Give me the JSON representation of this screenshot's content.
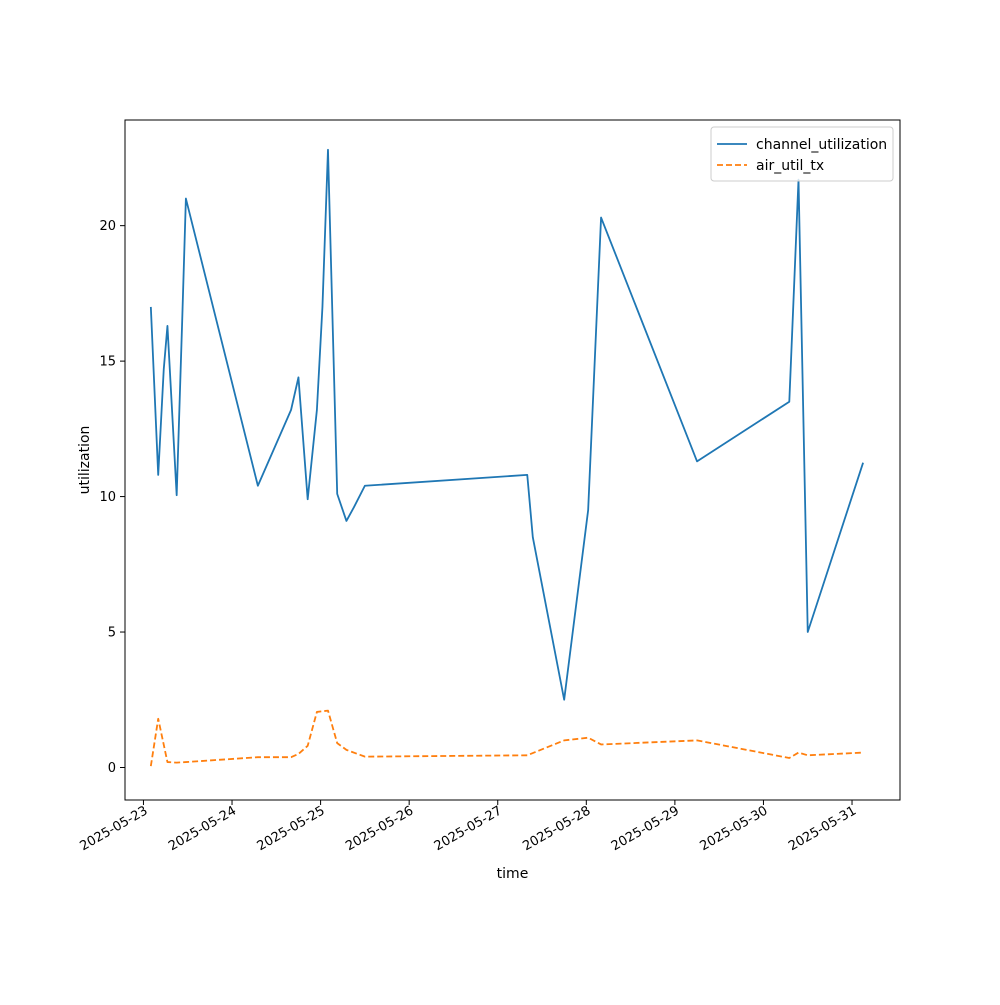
{
  "chart_data": {
    "type": "line",
    "title": "",
    "xlabel": "time",
    "ylabel": "utilization",
    "x_type": "date",
    "xlim": [
      "2025-05-22T19:00",
      "2025-05-31T13:00"
    ],
    "ylim": [
      -1.2,
      23.9
    ],
    "yticks": [
      0,
      5,
      10,
      15,
      20
    ],
    "xticks": [
      "2025-05-23",
      "2025-05-24",
      "2025-05-25",
      "2025-05-26",
      "2025-05-27",
      "2025-05-28",
      "2025-05-29",
      "2025-05-30",
      "2025-05-31"
    ],
    "grid": false,
    "legend_position": "top-right",
    "series": [
      {
        "name": "channel_utilization",
        "color": "#1f77b4",
        "dash": "solid",
        "points": [
          {
            "x": "2025-05-23T02:00",
            "y": 17.0
          },
          {
            "x": "2025-05-23T04:00",
            "y": 10.8
          },
          {
            "x": "2025-05-23T05:30",
            "y": 14.7
          },
          {
            "x": "2025-05-23T06:30",
            "y": 16.3
          },
          {
            "x": "2025-05-23T09:00",
            "y": 10.05
          },
          {
            "x": "2025-05-23T10:30",
            "y": 16.5
          },
          {
            "x": "2025-05-23T11:30",
            "y": 21.0
          },
          {
            "x": "2025-05-24T07:00",
            "y": 10.4
          },
          {
            "x": "2025-05-24T16:00",
            "y": 13.2
          },
          {
            "x": "2025-05-24T18:00",
            "y": 14.4
          },
          {
            "x": "2025-05-24T20:30",
            "y": 9.9
          },
          {
            "x": "2025-05-24T23:00",
            "y": 13.2
          },
          {
            "x": "2025-05-25T00:30",
            "y": 17.0
          },
          {
            "x": "2025-05-25T02:00",
            "y": 22.8
          },
          {
            "x": "2025-05-25T04:30",
            "y": 10.1
          },
          {
            "x": "2025-05-25T07:00",
            "y": 9.1
          },
          {
            "x": "2025-05-25T09:00",
            "y": 9.6
          },
          {
            "x": "2025-05-25T12:00",
            "y": 10.4
          },
          {
            "x": "2025-05-27T08:00",
            "y": 10.8
          },
          {
            "x": "2025-05-27T09:30",
            "y": 8.5
          },
          {
            "x": "2025-05-27T18:00",
            "y": 2.5
          },
          {
            "x": "2025-05-28T00:30",
            "y": 9.5
          },
          {
            "x": "2025-05-28T04:00",
            "y": 20.3
          },
          {
            "x": "2025-05-29T06:00",
            "y": 11.3
          },
          {
            "x": "2025-05-30T07:00",
            "y": 13.5
          },
          {
            "x": "2025-05-30T09:30",
            "y": 21.7
          },
          {
            "x": "2025-05-30T12:00",
            "y": 5.0
          },
          {
            "x": "2025-05-31T03:00",
            "y": 11.25
          }
        ]
      },
      {
        "name": "air_util_tx",
        "color": "#ff7f0e",
        "dash": "dashed",
        "points": [
          {
            "x": "2025-05-23T02:00",
            "y": 0.05
          },
          {
            "x": "2025-05-23T04:00",
            "y": 1.8
          },
          {
            "x": "2025-05-23T06:30",
            "y": 0.2
          },
          {
            "x": "2025-05-23T09:00",
            "y": 0.18
          },
          {
            "x": "2025-05-23T11:30",
            "y": 0.2
          },
          {
            "x": "2025-05-24T07:00",
            "y": 0.38
          },
          {
            "x": "2025-05-24T16:00",
            "y": 0.38
          },
          {
            "x": "2025-05-24T18:00",
            "y": 0.5
          },
          {
            "x": "2025-05-24T20:30",
            "y": 0.8
          },
          {
            "x": "2025-05-24T23:00",
            "y": 2.05
          },
          {
            "x": "2025-05-25T02:00",
            "y": 2.1
          },
          {
            "x": "2025-05-25T04:30",
            "y": 0.9
          },
          {
            "x": "2025-05-25T07:00",
            "y": 0.65
          },
          {
            "x": "2025-05-25T12:00",
            "y": 0.4
          },
          {
            "x": "2025-05-27T08:00",
            "y": 0.45
          },
          {
            "x": "2025-05-27T18:00",
            "y": 1.0
          },
          {
            "x": "2025-05-28T00:30",
            "y": 1.1
          },
          {
            "x": "2025-05-28T04:00",
            "y": 0.85
          },
          {
            "x": "2025-05-29T06:00",
            "y": 1.0
          },
          {
            "x": "2025-05-30T07:00",
            "y": 0.35
          },
          {
            "x": "2025-05-30T09:30",
            "y": 0.55
          },
          {
            "x": "2025-05-30T12:00",
            "y": 0.45
          },
          {
            "x": "2025-05-31T03:00",
            "y": 0.55
          }
        ]
      }
    ]
  }
}
